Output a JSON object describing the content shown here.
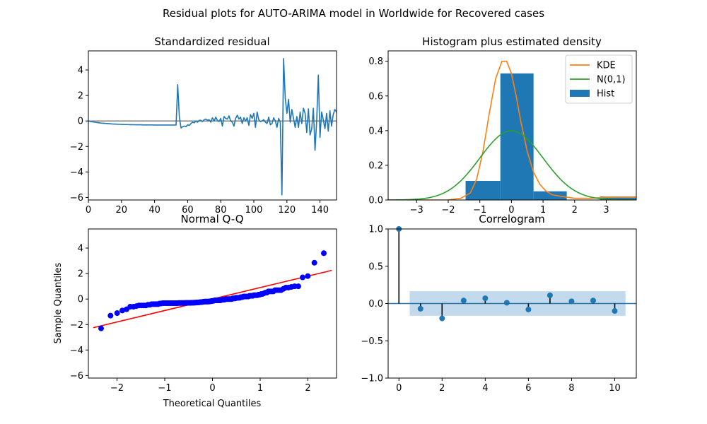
{
  "figure": {
    "suptitle": "Residual plots for AUTO-ARIMA model in Worldwide for Recovered cases"
  },
  "colors": {
    "residual": "#1f77b4",
    "kde": "#ff7f0e",
    "normal": "#2ca02c",
    "hist": "#1f77b4",
    "qq_points": "#0000ff",
    "qq_line": "#ff0000",
    "acf": "#1f77b4",
    "ci_band": "#aecde6"
  },
  "chart_data": [
    {
      "type": "line",
      "title": "Standardized residual",
      "xlabel": "",
      "ylabel": "",
      "xlim": [
        0,
        150
      ],
      "ylim": [
        -6.2,
        5.5
      ],
      "xticks": [
        0,
        20,
        40,
        60,
        80,
        100,
        120,
        140
      ],
      "yticks": [
        -6,
        -4,
        -2,
        0,
        2,
        4
      ],
      "reference_line": 0,
      "x_start": 0,
      "values": [
        0.0,
        -0.03,
        -0.06,
        -0.08,
        -0.1,
        -0.12,
        -0.14,
        -0.15,
        -0.17,
        -0.18,
        -0.19,
        -0.2,
        -0.21,
        -0.22,
        -0.23,
        -0.24,
        -0.24,
        -0.25,
        -0.26,
        -0.26,
        -0.27,
        -0.27,
        -0.28,
        -0.28,
        -0.28,
        -0.29,
        -0.29,
        -0.29,
        -0.3,
        -0.3,
        -0.3,
        -0.3,
        -0.3,
        -0.31,
        -0.31,
        -0.31,
        -0.31,
        -0.31,
        -0.31,
        -0.31,
        -0.32,
        -0.32,
        -0.32,
        -0.32,
        -0.32,
        -0.32,
        -0.32,
        -0.32,
        -0.32,
        -0.32,
        -0.32,
        -0.32,
        -0.32,
        -0.32,
        2.85,
        0.3,
        -0.55,
        -0.45,
        -0.4,
        -0.45,
        -0.3,
        -0.35,
        -0.2,
        -0.1,
        -0.15,
        0.0,
        -0.1,
        0.05,
        0.05,
        -0.05,
        0.1,
        0.15,
        0.05,
        0.1,
        -0.1,
        0.25,
        0.0,
        0.3,
        0.05,
        -0.05,
        0.2,
        -0.4,
        0.35,
        0.2,
        0.15,
        0.4,
        0.0,
        -0.1,
        -0.4,
        0.2,
        0.45,
        0.15,
        0.3,
        -0.2,
        0.25,
        0.0,
        0.25,
        -0.35,
        0.5,
        0.2,
        0.6,
        -0.5,
        0.7,
        0.1,
        -0.05,
        0.0,
        0.1,
        -0.1,
        -0.2,
        0.3,
        -0.3,
        -0.2,
        0.25,
        0.0,
        -0.5,
        0.2,
        -0.1,
        -5.8,
        4.9,
        1.8,
        0.6,
        1.7,
        -0.1,
        0.9,
        0.2,
        -0.5,
        0.35,
        -0.5,
        0.7,
        -0.2,
        1.0,
        0.6,
        -0.9,
        0.95,
        -1.1,
        -0.6,
        1.0,
        -2.3,
        0.0,
        3.6,
        -1.3,
        0.7,
        0.1,
        -0.6,
        0.6,
        -0.8,
        0.8,
        -0.4,
        0.5,
        0.9,
        0.7,
        -0.4,
        0.4
      ]
    },
    {
      "type": "bar",
      "title": "Histogram plus estimated density",
      "xlim": [
        -3.9,
        3.95
      ],
      "ylim": [
        0,
        0.86
      ],
      "xticks": [
        -3,
        -2,
        -1,
        0,
        1,
        2,
        3
      ],
      "yticks": [
        0.0,
        0.2,
        0.4,
        0.6,
        0.8
      ],
      "hist_bins": [
        {
          "from": -1.45,
          "to": -0.35,
          "value": 0.11
        },
        {
          "from": -0.35,
          "to": 0.7,
          "value": 0.73
        },
        {
          "from": 0.7,
          "to": 1.75,
          "value": 0.05
        },
        {
          "from": 2.8,
          "to": 3.95,
          "value": 0.02
        }
      ],
      "series": [
        {
          "name": "KDE",
          "x": [
            -3.9,
            -3.0,
            -2.5,
            -2.0,
            -1.6,
            -1.3,
            -1.1,
            -0.9,
            -0.7,
            -0.5,
            -0.3,
            -0.15,
            0.0,
            0.15,
            0.3,
            0.5,
            0.7,
            0.9,
            1.1,
            1.3,
            1.6,
            2.0,
            2.5,
            3.0,
            3.5,
            3.95
          ],
          "values": [
            0.0,
            0.0,
            0.0,
            0.0,
            0.01,
            0.04,
            0.12,
            0.28,
            0.5,
            0.7,
            0.8,
            0.8,
            0.73,
            0.6,
            0.45,
            0.28,
            0.16,
            0.09,
            0.05,
            0.03,
            0.02,
            0.01,
            0.01,
            0.015,
            0.015,
            0.015
          ]
        },
        {
          "name": "N(0,1)",
          "kind": "normal_pdf",
          "mean": 0,
          "sd": 1
        },
        {
          "name": "Hist"
        }
      ],
      "legend_position": "top-right"
    },
    {
      "type": "scatter",
      "title": "Normal Q-Q",
      "xlabel": "Theoretical Quantiles",
      "ylabel": "Sample Quantiles",
      "xlim": [
        -2.6,
        2.6
      ],
      "ylim": [
        -6.2,
        5.5
      ],
      "xticks": [
        -2,
        -1,
        0,
        1,
        2
      ],
      "yticks": [
        -6,
        -4,
        -2,
        0,
        2,
        4
      ],
      "reference_line": {
        "slope": 0.9,
        "intercept": 0.0,
        "x_from": -2.5,
        "x_to": 2.5
      },
      "points_source": "standardized_residual_sorted"
    },
    {
      "type": "bar",
      "title": "Correlogram",
      "xlim": [
        -0.5,
        11
      ],
      "ylim": [
        -1.0,
        1.0
      ],
      "xticks": [
        0,
        2,
        4,
        6,
        8,
        10
      ],
      "yticks": [
        -1.0,
        -0.5,
        0.0,
        0.5,
        1.0
      ],
      "lags": [
        0,
        1,
        2,
        3,
        4,
        5,
        6,
        7,
        8,
        9,
        10
      ],
      "values": [
        1.0,
        -0.07,
        -0.2,
        0.04,
        0.07,
        0.01,
        -0.08,
        0.11,
        0.03,
        0.04,
        -0.1
      ],
      "confidence_band": {
        "from_lag": 0.5,
        "to_lag": 10.5,
        "half_width": 0.165
      }
    }
  ]
}
